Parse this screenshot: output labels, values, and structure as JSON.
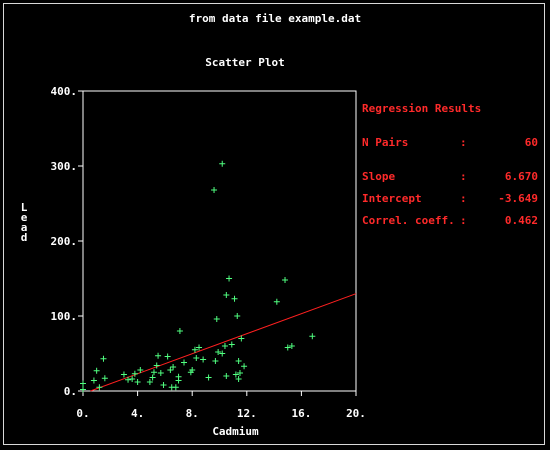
{
  "subtitle": "from data file example.dat",
  "chart_data": {
    "type": "scatter",
    "title": "Scatter Plot",
    "xlabel": "Cadmium",
    "ylabel": "Lead",
    "xlim": [
      0,
      20
    ],
    "ylim": [
      0,
      400
    ],
    "x_ticks": [
      "0.",
      "4.",
      "8.",
      "12.",
      "16.",
      "20."
    ],
    "y_ticks": [
      "0.",
      "100.",
      "200.",
      "300.",
      "400."
    ],
    "x_tick_values": [
      0,
      4,
      8,
      12,
      16,
      20
    ],
    "y_tick_values": [
      0,
      100,
      200,
      300,
      400
    ],
    "grid": false,
    "point_color": "#50ff80",
    "line_color": "#ff2020",
    "axis_color": "#ffffff",
    "points": [
      {
        "x": 0.0,
        "y": 2
      },
      {
        "x": 0.0,
        "y": 10
      },
      {
        "x": 0.8,
        "y": 14
      },
      {
        "x": 1.0,
        "y": 27
      },
      {
        "x": 1.2,
        "y": 5
      },
      {
        "x": 1.5,
        "y": 43
      },
      {
        "x": 1.6,
        "y": 17
      },
      {
        "x": 3.0,
        "y": 22
      },
      {
        "x": 3.3,
        "y": 15
      },
      {
        "x": 3.6,
        "y": 16
      },
      {
        "x": 3.8,
        "y": 23
      },
      {
        "x": 4.0,
        "y": 12
      },
      {
        "x": 4.2,
        "y": 28
      },
      {
        "x": 4.9,
        "y": 12
      },
      {
        "x": 5.1,
        "y": 18
      },
      {
        "x": 5.2,
        "y": 25
      },
      {
        "x": 5.4,
        "y": 34
      },
      {
        "x": 5.5,
        "y": 47
      },
      {
        "x": 5.7,
        "y": 24
      },
      {
        "x": 5.9,
        "y": 8
      },
      {
        "x": 6.2,
        "y": 46
      },
      {
        "x": 6.4,
        "y": 28
      },
      {
        "x": 6.6,
        "y": 32
      },
      {
        "x": 6.5,
        "y": 5
      },
      {
        "x": 6.8,
        "y": 5
      },
      {
        "x": 7.0,
        "y": 19
      },
      {
        "x": 7.0,
        "y": 14
      },
      {
        "x": 7.1,
        "y": 80
      },
      {
        "x": 7.4,
        "y": 38
      },
      {
        "x": 7.9,
        "y": 25
      },
      {
        "x": 8.0,
        "y": 28
      },
      {
        "x": 8.2,
        "y": 55
      },
      {
        "x": 8.3,
        "y": 44
      },
      {
        "x": 8.5,
        "y": 58
      },
      {
        "x": 8.8,
        "y": 42
      },
      {
        "x": 9.2,
        "y": 18
      },
      {
        "x": 9.6,
        "y": 268
      },
      {
        "x": 9.7,
        "y": 40
      },
      {
        "x": 9.9,
        "y": 52
      },
      {
        "x": 9.8,
        "y": 96
      },
      {
        "x": 10.2,
        "y": 303
      },
      {
        "x": 10.2,
        "y": 50
      },
      {
        "x": 10.4,
        "y": 60
      },
      {
        "x": 10.5,
        "y": 128
      },
      {
        "x": 10.5,
        "y": 20
      },
      {
        "x": 10.7,
        "y": 150
      },
      {
        "x": 10.9,
        "y": 62
      },
      {
        "x": 11.1,
        "y": 123
      },
      {
        "x": 11.2,
        "y": 22
      },
      {
        "x": 11.3,
        "y": 100
      },
      {
        "x": 11.4,
        "y": 40
      },
      {
        "x": 11.4,
        "y": 16
      },
      {
        "x": 11.5,
        "y": 24
      },
      {
        "x": 11.6,
        "y": 70
      },
      {
        "x": 11.8,
        "y": 33
      },
      {
        "x": 14.2,
        "y": 119
      },
      {
        "x": 14.8,
        "y": 148
      },
      {
        "x": 15.0,
        "y": 58
      },
      {
        "x": 15.3,
        "y": 60
      },
      {
        "x": 16.8,
        "y": 73
      }
    ],
    "regression_line": {
      "slope": 6.67,
      "intercept": -3.649
    }
  },
  "regression": {
    "heading": "Regression Results",
    "rows": [
      {
        "label": "N Pairs",
        "colon": ":",
        "value": "60"
      },
      {
        "label": "Slope",
        "colon": ":",
        "value": "6.670"
      },
      {
        "label": "Intercept",
        "colon": ":",
        "value": "-3.649"
      },
      {
        "label": "Correl. coeff.",
        "colon": ":",
        "value": "0.462"
      }
    ]
  }
}
